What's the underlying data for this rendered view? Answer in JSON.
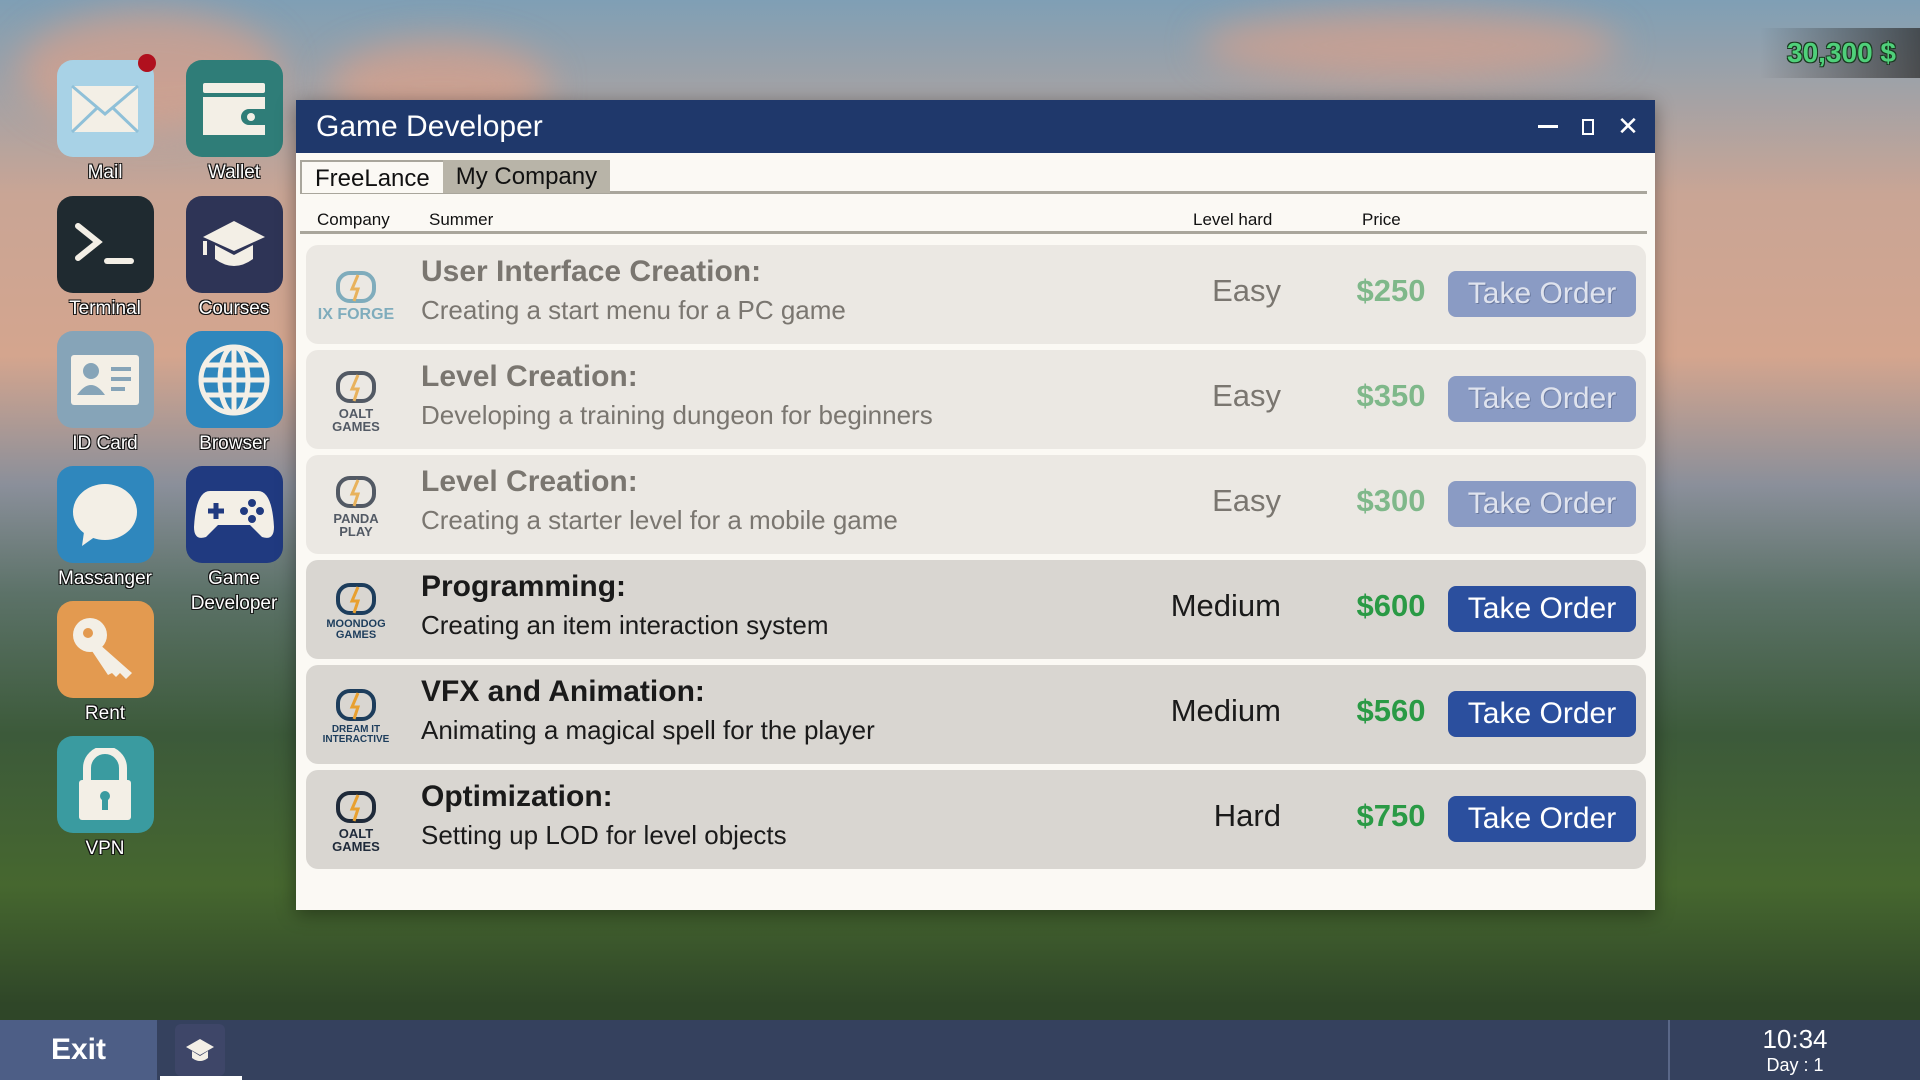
{
  "balance": "30,300 $",
  "desktop_icons": [
    {
      "label": "Mail",
      "icon": "mail-icon",
      "color": "#a8d2e6"
    },
    {
      "label": "Wallet",
      "icon": "wallet-icon",
      "color": "#2f7d78"
    },
    {
      "label": "Terminal",
      "icon": "terminal-icon",
      "color": "#1f2a30"
    },
    {
      "label": "Courses",
      "icon": "graduation-cap-icon",
      "color": "#2e3456"
    },
    {
      "label": "ID Card",
      "icon": "id-card-icon",
      "color": "#86a4b8"
    },
    {
      "label": "Browser",
      "icon": "globe-icon",
      "color": "#2f87bd"
    },
    {
      "label": "Massanger",
      "icon": "chat-bubble-icon",
      "color": "#2f87bd"
    },
    {
      "label": "Game Developer",
      "icon": "gamepad-icon",
      "color": "#203a80"
    },
    {
      "label": "Rent",
      "icon": "key-icon",
      "color": "#e39a50"
    },
    {
      "label": "VPN",
      "icon": "lock-icon",
      "color": "#3a9ba0"
    }
  ],
  "window": {
    "title": "Game Developer",
    "tabs": [
      {
        "label": "FreeLance",
        "active": true
      },
      {
        "label": "My Company",
        "active": false
      }
    ],
    "columns": {
      "company": "Company",
      "summary": "Summer",
      "level": "Level hard",
      "price": "Price"
    },
    "orders": [
      {
        "company": "IX FORGE",
        "title": "User Interface Creation:",
        "desc": "Creating a start menu for a PC game",
        "level": "Easy",
        "price": "$250",
        "button": "Take Order",
        "enabled": false
      },
      {
        "company": "OALT GAMES",
        "title": "Level Creation:",
        "desc": "Developing a training dungeon for beginners",
        "level": "Easy",
        "price": "$350",
        "button": "Take Order",
        "enabled": false
      },
      {
        "company": "PANDA PLAY",
        "title": "Level Creation:",
        "desc": "Creating a starter level for a mobile game",
        "level": "Easy",
        "price": "$300",
        "button": "Take Order",
        "enabled": false
      },
      {
        "company": "MOONDOG GAMES",
        "title": "Programming:",
        "desc": "Creating an item interaction system",
        "level": "Medium",
        "price": "$600",
        "button": "Take Order",
        "enabled": true
      },
      {
        "company": "DREAM IT INTERACTIVE",
        "title": "VFX and Animation:",
        "desc": "Animating a magical spell for the player",
        "level": "Medium",
        "price": "$560",
        "button": "Take Order",
        "enabled": true
      },
      {
        "company": "OALT GAMES",
        "title": "Optimization:",
        "desc": "Setting up LOD for level objects",
        "level": "Hard",
        "price": "$750",
        "button": "Take Order",
        "enabled": true
      }
    ]
  },
  "taskbar": {
    "exit": "Exit",
    "time": "10:34",
    "day": "Day : 1"
  },
  "colors": {
    "titlebar": "#1f386b",
    "button": "#2b4f9e",
    "price": "#2a9a45",
    "money": "#4fd07a"
  }
}
